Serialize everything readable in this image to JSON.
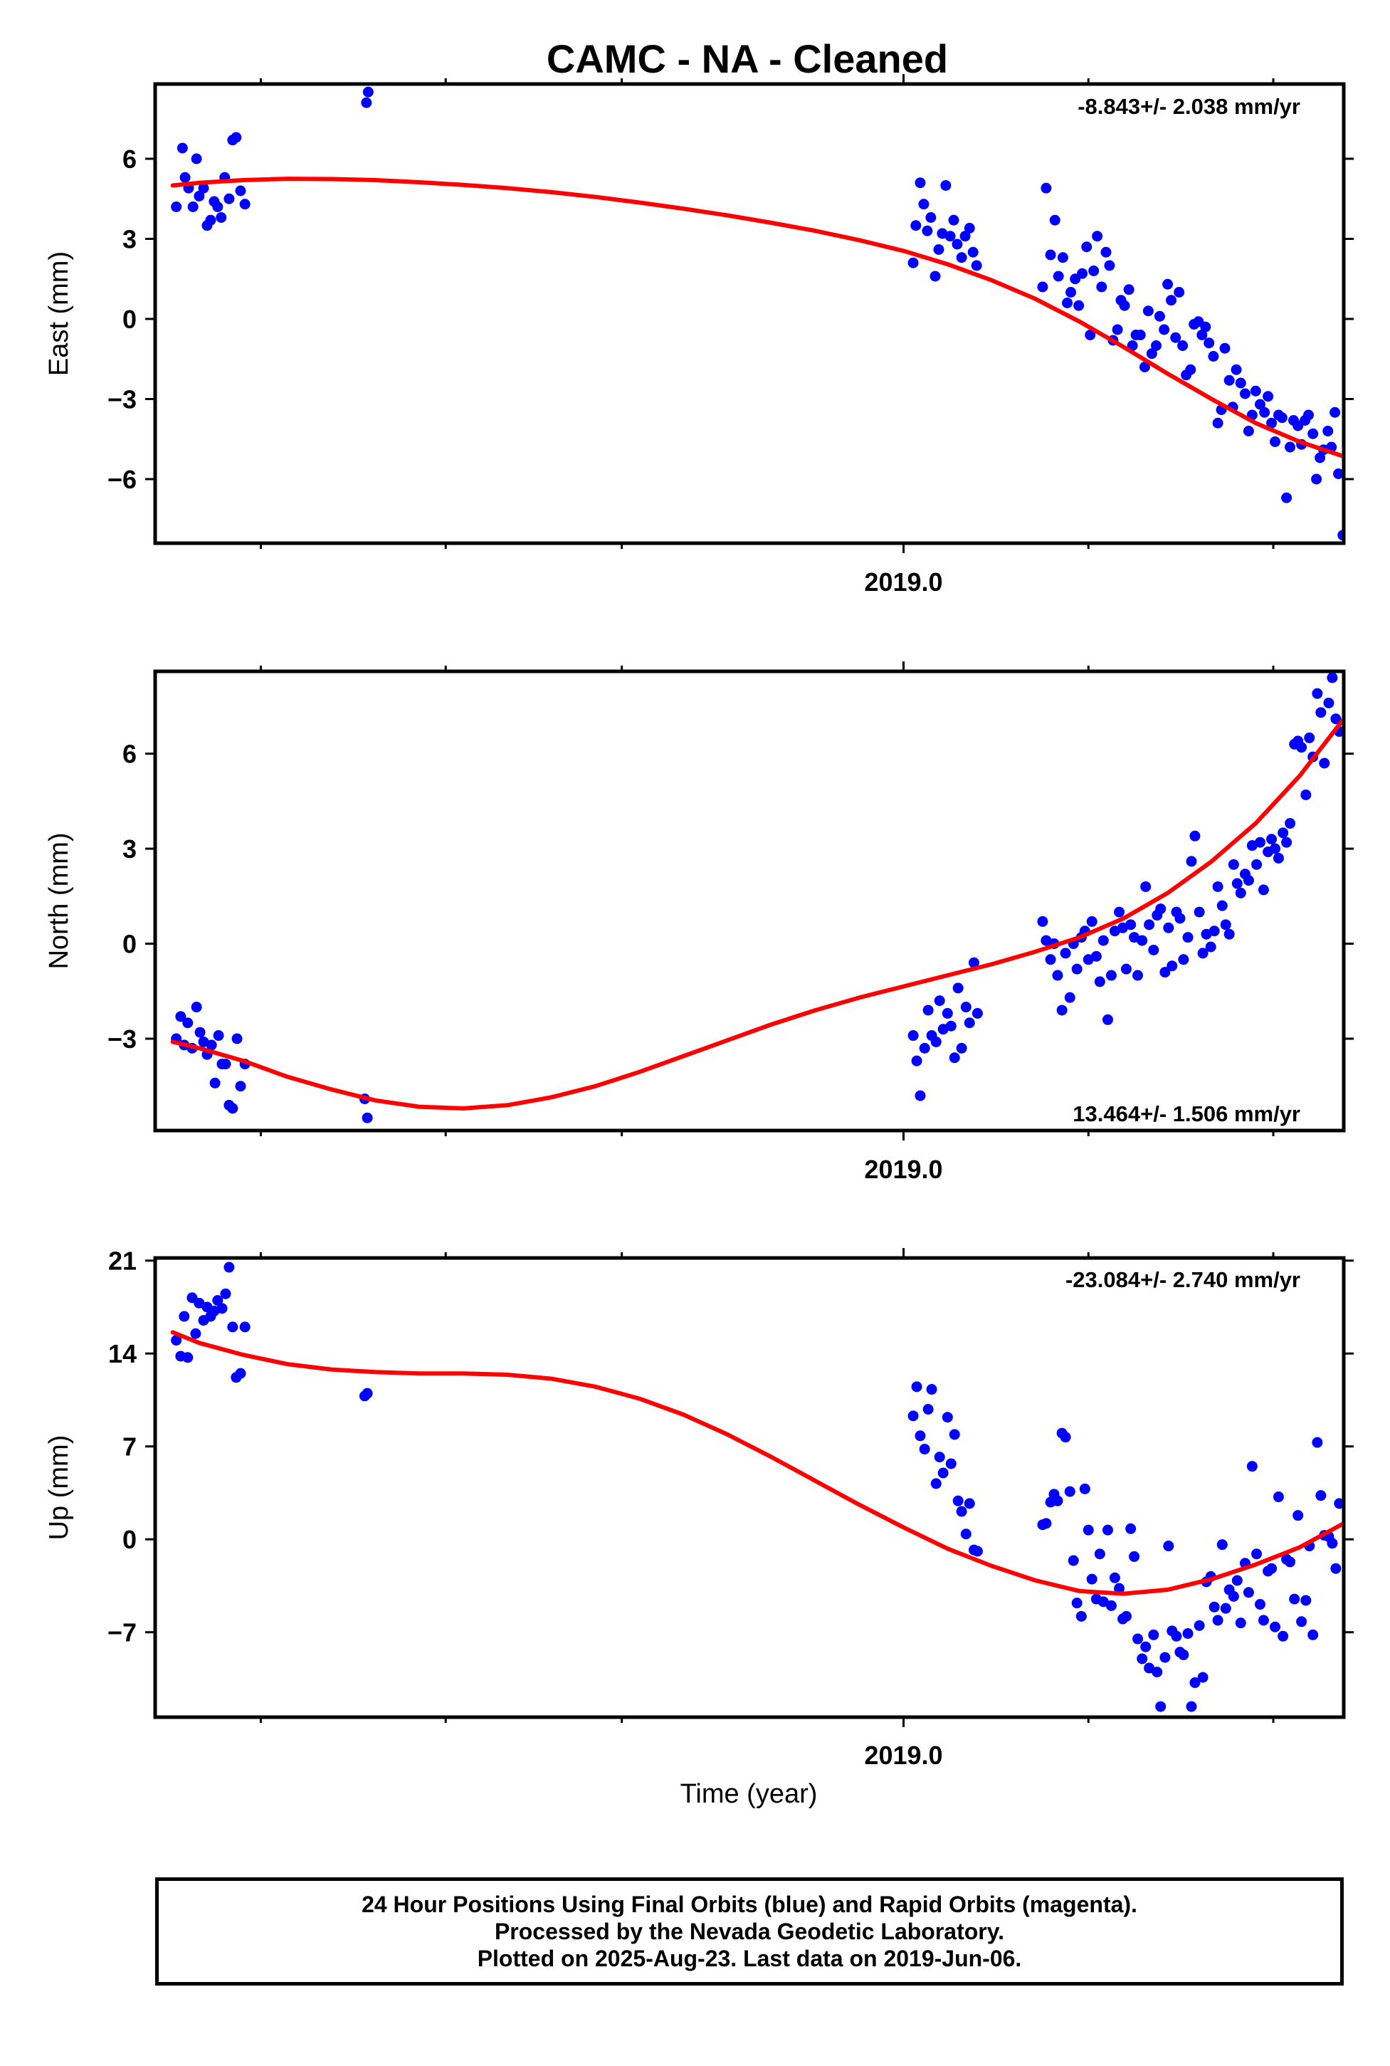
{
  "title": "CAMC  - NA - Cleaned",
  "colors": {
    "final_orbits": "#0000ff",
    "fit_line": "#ff0000",
    "frame": "#000000"
  },
  "footer": {
    "line1": "24 Hour Positions Using Final Orbits (blue) and Rapid Orbits (magenta).",
    "line2": "Processed by the Nevada Geodetic Laboratory.",
    "line3": "Plotted on 2025-Aug-23. Last data on 2019-Jun-06."
  },
  "chart_data": [
    {
      "type": "scatter",
      "title": "CAMC  - NA - Cleaned",
      "xlabel": "",
      "ylabel": "East (mm)",
      "xlim": [
        2018.15,
        2019.5
      ],
      "ylim": [
        -8.4,
        8.8
      ],
      "x_ticks": [
        2019.0
      ],
      "x_tick_labels": [
        "2019.0"
      ],
      "y_ticks": [
        -6,
        -3,
        0,
        3,
        6
      ],
      "y_tick_labels": [
        "−6",
        "−3",
        "0",
        "3",
        "6"
      ],
      "rate_label": "-8.843+/- 2.038 mm/yr",
      "series": [
        {
          "role": "daily positions (final orbits)",
          "x": [
            2018.174,
            2018.181,
            2018.184,
            2018.188,
            2018.193,
            2018.197,
            2018.2,
            2018.205,
            2018.209,
            2018.213,
            2018.217,
            2018.221,
            2018.225,
            2018.229,
            2018.234,
            2018.238,
            2018.242,
            2018.247,
            2018.252,
            2018.39,
            2018.392,
            2019.011,
            2019.014,
            2019.019,
            2019.023,
            2019.027,
            2019.031,
            2019.036,
            2019.04,
            2019.044,
            2019.048,
            2019.053,
            2019.057,
            2019.061,
            2019.066,
            2019.07,
            2019.075,
            2019.079,
            2019.083,
            2019.158,
            2019.162,
            2019.167,
            2019.172,
            2019.176,
            2019.181,
            2019.186,
            2019.19,
            2019.195,
            2019.199,
            2019.203,
            2019.208,
            2019.212,
            2019.216,
            2019.22,
            2019.225,
            2019.23,
            2019.234,
            2019.238,
            2019.243,
            2019.247,
            2019.251,
            2019.256,
            2019.26,
            2019.264,
            2019.269,
            2019.274,
            2019.278,
            2019.282,
            2019.287,
            2019.291,
            2019.296,
            2019.3,
            2019.304,
            2019.309,
            2019.313,
            2019.317,
            2019.321,
            2019.326,
            2019.33,
            2019.335,
            2019.339,
            2019.343,
            2019.347,
            2019.352,
            2019.357,
            2019.361,
            2019.365,
            2019.37,
            2019.374,
            2019.378,
            2019.383,
            2019.388,
            2019.392,
            2019.396,
            2019.4,
            2019.405,
            2019.41,
            2019.414,
            2019.418,
            2019.422,
            2019.426,
            2019.43,
            2019.435,
            2019.439,
            2019.443,
            2019.448,
            2019.452,
            2019.456,
            2019.46,
            2019.465,
            2019.469,
            2019.473,
            2019.477,
            2019.482,
            2019.486,
            2019.49,
            2019.494,
            2019.499
          ],
          "y": [
            4.2,
            6.4,
            5.3,
            4.9,
            4.2,
            6.0,
            4.6,
            4.9,
            3.5,
            3.7,
            4.4,
            4.2,
            3.8,
            5.3,
            4.5,
            6.7,
            6.8,
            4.8,
            4.3,
            8.1,
            8.5,
            2.1,
            3.5,
            5.1,
            4.3,
            3.3,
            3.8,
            1.6,
            2.6,
            3.2,
            5.0,
            3.1,
            3.7,
            2.8,
            2.3,
            3.1,
            3.4,
            2.5,
            2.0,
            1.2,
            4.9,
            2.4,
            3.7,
            1.6,
            2.3,
            0.6,
            1.0,
            1.5,
            0.5,
            1.7,
            2.7,
            -0.6,
            1.8,
            3.1,
            1.2,
            2.5,
            2.0,
            -0.8,
            -0.4,
            0.7,
            0.5,
            1.1,
            -1.0,
            -0.6,
            -0.6,
            -1.8,
            0.3,
            -1.3,
            -1.0,
            0.1,
            -0.4,
            1.3,
            0.7,
            -0.7,
            1.0,
            -1.0,
            -2.1,
            -1.9,
            -0.2,
            -0.1,
            -0.6,
            -0.3,
            -0.9,
            -1.4,
            -3.9,
            -3.4,
            -1.1,
            -2.3,
            -3.3,
            -1.9,
            -2.4,
            -2.8,
            -4.2,
            -3.6,
            -2.7,
            -3.2,
            -3.5,
            -2.9,
            -3.9,
            -4.6,
            -3.6,
            -3.7,
            -6.7,
            -4.8,
            -3.8,
            -4.0,
            -4.7,
            -3.8,
            -3.6,
            -4.3,
            -6.0,
            -5.2,
            -4.9,
            -4.2,
            -4.8,
            -3.5,
            -5.8,
            -8.1
          ]
        },
        {
          "role": "model fit",
          "x": [
            2018.17,
            2018.2,
            2018.25,
            2018.3,
            2018.35,
            2018.4,
            2018.45,
            2018.5,
            2018.55,
            2018.6,
            2018.65,
            2018.7,
            2018.75,
            2018.8,
            2018.85,
            2018.9,
            2018.95,
            2019.0,
            2019.05,
            2019.1,
            2019.15,
            2019.2,
            2019.25,
            2019.3,
            2019.35,
            2019.4,
            2019.45,
            2019.5
          ],
          "y": [
            5.0,
            5.1,
            5.2,
            5.25,
            5.24,
            5.2,
            5.12,
            5.02,
            4.9,
            4.75,
            4.57,
            4.36,
            4.13,
            3.88,
            3.6,
            3.3,
            2.95,
            2.55,
            2.05,
            1.45,
            0.75,
            -0.1,
            -1.05,
            -2.05,
            -3.0,
            -3.9,
            -4.6,
            -5.15
          ]
        }
      ]
    },
    {
      "type": "scatter",
      "xlabel": "",
      "ylabel": "North (mm)",
      "xlim": [
        2018.15,
        2019.5
      ],
      "ylim": [
        -5.9,
        8.6
      ],
      "x_ticks": [
        2019.0
      ],
      "x_tick_labels": [
        "2019.0"
      ],
      "y_ticks": [
        -3,
        0,
        3,
        6
      ],
      "y_tick_labels": [
        "−3",
        "0",
        "3",
        "6"
      ],
      "rate_label": "13.464+/- 1.506 mm/yr",
      "series": [
        {
          "role": "daily positions (final orbits)",
          "x": [
            2018.174,
            2018.179,
            2018.183,
            2018.187,
            2018.192,
            2018.197,
            2018.201,
            2018.205,
            2018.209,
            2018.214,
            2018.218,
            2018.222,
            2018.226,
            2018.23,
            2018.234,
            2018.238,
            2018.243,
            2018.247,
            2018.252,
            2018.388,
            2018.391,
            2019.011,
            2019.015,
            2019.019,
            2019.024,
            2019.028,
            2019.032,
            2019.037,
            2019.041,
            2019.045,
            2019.05,
            2019.054,
            2019.058,
            2019.062,
            2019.066,
            2019.071,
            2019.075,
            2019.08,
            2019.084,
            2019.158,
            2019.162,
            2019.167,
            2019.171,
            2019.175,
            2019.18,
            2019.184,
            2019.189,
            2019.193,
            2019.197,
            2019.202,
            2019.206,
            2019.21,
            2019.214,
            2019.219,
            2019.223,
            2019.227,
            2019.232,
            2019.236,
            2019.24,
            2019.245,
            2019.249,
            2019.253,
            2019.258,
            2019.262,
            2019.266,
            2019.271,
            2019.275,
            2019.279,
            2019.284,
            2019.288,
            2019.292,
            2019.297,
            2019.301,
            2019.305,
            2019.31,
            2019.314,
            2019.318,
            2019.323,
            2019.327,
            2019.331,
            2019.336,
            2019.34,
            2019.344,
            2019.349,
            2019.353,
            2019.357,
            2019.362,
            2019.366,
            2019.37,
            2019.375,
            2019.379,
            2019.383,
            2019.388,
            2019.392,
            2019.396,
            2019.401,
            2019.405,
            2019.409,
            2019.414,
            2019.418,
            2019.422,
            2019.426,
            2019.431,
            2019.435,
            2019.439,
            2019.444,
            2019.448,
            2019.452,
            2019.457,
            2019.461,
            2019.465,
            2019.47,
            2019.474,
            2019.478,
            2019.483,
            2019.487,
            2019.491,
            2019.495
          ],
          "y": [
            -3.0,
            -2.3,
            -3.2,
            -2.5,
            -3.3,
            -2.0,
            -2.8,
            -3.1,
            -3.5,
            -3.2,
            -4.4,
            -2.9,
            -3.8,
            -3.8,
            -5.1,
            -5.2,
            -3.0,
            -4.5,
            -3.8,
            -4.9,
            -5.5,
            -2.9,
            -3.7,
            -4.8,
            -3.3,
            -2.1,
            -2.9,
            -3.1,
            -1.8,
            -2.7,
            -2.2,
            -2.6,
            -3.6,
            -1.4,
            -3.3,
            -2.0,
            -2.5,
            -0.6,
            -2.2,
            0.7,
            0.1,
            -0.5,
            0.0,
            -1.0,
            -2.1,
            -0.3,
            -1.7,
            0.0,
            -0.8,
            0.2,
            0.4,
            -0.5,
            0.7,
            -0.4,
            -1.2,
            0.1,
            -2.4,
            -1.0,
            0.4,
            1.0,
            0.5,
            -0.8,
            0.6,
            0.2,
            -1.0,
            0.1,
            1.8,
            0.6,
            -0.2,
            0.9,
            1.1,
            -0.9,
            0.5,
            -0.7,
            1.0,
            0.8,
            -0.5,
            0.2,
            2.6,
            3.4,
            1.0,
            -0.3,
            0.3,
            -0.1,
            0.4,
            1.8,
            1.2,
            0.6,
            0.3,
            2.5,
            1.9,
            1.6,
            2.2,
            2.0,
            3.1,
            2.5,
            3.2,
            1.7,
            2.9,
            3.3,
            3.0,
            2.7,
            3.5,
            3.2,
            3.8,
            6.3,
            6.4,
            6.2,
            4.7,
            6.5,
            5.9,
            7.9,
            7.3,
            5.7,
            7.6,
            8.4,
            7.1,
            6.7
          ]
        },
        {
          "role": "model fit",
          "x": [
            2018.17,
            2018.2,
            2018.25,
            2018.3,
            2018.35,
            2018.4,
            2018.45,
            2018.5,
            2018.55,
            2018.6,
            2018.65,
            2018.7,
            2018.75,
            2018.8,
            2018.85,
            2018.9,
            2018.95,
            2019.0,
            2019.05,
            2019.1,
            2019.15,
            2019.2,
            2019.25,
            2019.3,
            2019.35,
            2019.4,
            2019.45,
            2019.5
          ],
          "y": [
            -3.1,
            -3.3,
            -3.7,
            -4.2,
            -4.6,
            -4.95,
            -5.15,
            -5.2,
            -5.1,
            -4.85,
            -4.5,
            -4.05,
            -3.55,
            -3.05,
            -2.55,
            -2.1,
            -1.7,
            -1.35,
            -1.0,
            -0.65,
            -0.25,
            0.2,
            0.8,
            1.6,
            2.6,
            3.8,
            5.3,
            7.1
          ]
        }
      ]
    },
    {
      "type": "scatter",
      "xlabel": "Time (year)",
      "ylabel": "Up (mm)",
      "xlim": [
        2018.15,
        2019.5
      ],
      "ylim": [
        -13.4,
        21.2
      ],
      "x_ticks": [
        2019.0
      ],
      "x_tick_labels": [
        "2019.0"
      ],
      "y_ticks": [
        -7,
        0,
        7,
        14,
        21
      ],
      "y_tick_labels": [
        "−7",
        "0",
        "7",
        "14",
        "21"
      ],
      "rate_label": "-23.084+/- 2.740 mm/yr",
      "series": [
        {
          "role": "daily positions (final orbits)",
          "x": [
            2018.174,
            2018.179,
            2018.183,
            2018.187,
            2018.192,
            2018.196,
            2018.2,
            2018.205,
            2018.209,
            2018.213,
            2018.217,
            2018.221,
            2018.226,
            2018.23,
            2018.234,
            2018.238,
            2018.242,
            2018.247,
            2018.252,
            2018.388,
            2018.391,
            2019.011,
            2019.015,
            2019.019,
            2019.024,
            2019.028,
            2019.032,
            2019.037,
            2019.041,
            2019.045,
            2019.05,
            2019.054,
            2019.058,
            2019.062,
            2019.066,
            2019.071,
            2019.075,
            2019.08,
            2019.084,
            2019.158,
            2019.162,
            2019.167,
            2019.171,
            2019.175,
            2019.18,
            2019.184,
            2019.189,
            2019.193,
            2019.197,
            2019.202,
            2019.206,
            2019.21,
            2019.214,
            2019.219,
            2019.223,
            2019.227,
            2019.232,
            2019.236,
            2019.24,
            2019.245,
            2019.249,
            2019.253,
            2019.258,
            2019.262,
            2019.266,
            2019.271,
            2019.275,
            2019.279,
            2019.284,
            2019.288,
            2019.292,
            2019.297,
            2019.301,
            2019.305,
            2019.31,
            2019.314,
            2019.318,
            2019.323,
            2019.327,
            2019.331,
            2019.336,
            2019.34,
            2019.344,
            2019.349,
            2019.353,
            2019.357,
            2019.362,
            2019.366,
            2019.37,
            2019.375,
            2019.379,
            2019.383,
            2019.388,
            2019.392,
            2019.396,
            2019.401,
            2019.405,
            2019.409,
            2019.414,
            2019.418,
            2019.422,
            2019.426,
            2019.431,
            2019.435,
            2019.439,
            2019.444,
            2019.448,
            2019.452,
            2019.457,
            2019.461,
            2019.465,
            2019.47,
            2019.474,
            2019.478,
            2019.483,
            2019.487,
            2019.491,
            2019.495
          ],
          "y": [
            15.0,
            13.8,
            16.8,
            13.7,
            18.2,
            15.5,
            17.8,
            16.5,
            17.5,
            16.8,
            17.2,
            18.0,
            17.4,
            18.5,
            20.5,
            16.0,
            12.2,
            12.5,
            16.0,
            10.8,
            11.0,
            9.3,
            11.5,
            7.8,
            6.8,
            9.8,
            11.3,
            4.2,
            6.2,
            5.0,
            9.2,
            5.7,
            7.9,
            2.9,
            2.1,
            0.4,
            2.7,
            -0.8,
            -0.9,
            1.1,
            1.2,
            2.8,
            3.4,
            2.9,
            8.0,
            7.7,
            3.6,
            -1.6,
            -4.8,
            -5.8,
            3.8,
            0.7,
            -3.0,
            -4.5,
            -1.1,
            -4.7,
            0.7,
            -5.0,
            -2.9,
            -3.7,
            -6.0,
            -5.8,
            0.8,
            -1.3,
            -7.5,
            -9.0,
            -8.1,
            -9.7,
            -7.2,
            -10.0,
            -12.6,
            -8.9,
            -0.5,
            -6.9,
            -7.3,
            -8.5,
            -8.7,
            -7.1,
            -12.6,
            -10.8,
            -6.5,
            -10.4,
            -3.2,
            -2.8,
            -5.1,
            -6.1,
            -0.4,
            -5.2,
            -3.8,
            -4.3,
            -3.1,
            -6.3,
            -1.8,
            -4.0,
            5.5,
            -1.1,
            -4.9,
            -6.1,
            -2.4,
            -2.2,
            -6.6,
            3.2,
            -7.3,
            -1.5,
            -1.7,
            -4.5,
            1.8,
            -6.2,
            -4.6,
            -0.5,
            -7.2,
            7.3,
            3.3,
            0.3,
            0.2,
            -0.3,
            -2.2,
            2.7
          ]
        },
        {
          "role": "model fit",
          "x": [
            2018.17,
            2018.2,
            2018.25,
            2018.3,
            2018.35,
            2018.4,
            2018.45,
            2018.5,
            2018.55,
            2018.6,
            2018.65,
            2018.7,
            2018.75,
            2018.8,
            2018.85,
            2018.9,
            2018.95,
            2019.0,
            2019.05,
            2019.1,
            2019.15,
            2019.2,
            2019.25,
            2019.3,
            2019.35,
            2019.4,
            2019.45,
            2019.5
          ],
          "y": [
            15.6,
            14.8,
            13.9,
            13.2,
            12.8,
            12.6,
            12.5,
            12.5,
            12.4,
            12.1,
            11.5,
            10.6,
            9.4,
            7.9,
            6.2,
            4.4,
            2.6,
            0.9,
            -0.7,
            -2.0,
            -3.1,
            -3.9,
            -4.1,
            -3.8,
            -3.0,
            -1.9,
            -0.6,
            1.2
          ]
        }
      ]
    }
  ]
}
